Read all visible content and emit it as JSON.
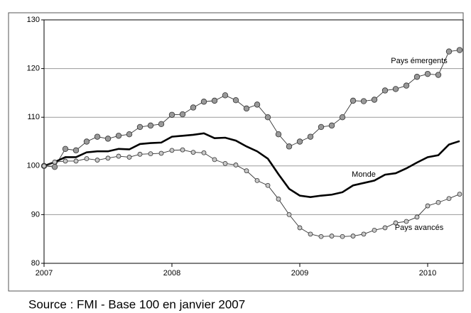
{
  "chart_data": {
    "type": "line",
    "categories": [
      "2007",
      null,
      null,
      null,
      null,
      null,
      null,
      null,
      null,
      null,
      null,
      null,
      "2008",
      null,
      null,
      null,
      null,
      null,
      null,
      null,
      null,
      null,
      null,
      null,
      "2009",
      null,
      null,
      null,
      null,
      null,
      null,
      null,
      null,
      null,
      null,
      null,
      "2010",
      null,
      null,
      null
    ],
    "series": [
      {
        "name": "Pays émergents",
        "color": "#999999",
        "marker": "large",
        "values": [
          100,
          99.8,
          103.5,
          103.2,
          105,
          106,
          105.6,
          106.2,
          106.5,
          108,
          108.3,
          108.6,
          110.5,
          110.6,
          112,
          113.2,
          113.4,
          114.5,
          113.5,
          111.8,
          112.6,
          110,
          106.5,
          104,
          105,
          106,
          108,
          108.3,
          110,
          113.4,
          113.3,
          113.6,
          115.5,
          115.8,
          116.5,
          118.3,
          118.9,
          118.7,
          123.5,
          123.8
        ]
      },
      {
        "name": "Monde",
        "color": "#000000",
        "marker": "none",
        "values": [
          100,
          100.8,
          101.8,
          101.8,
          102.8,
          103,
          103,
          103.5,
          103.4,
          104.5,
          104.7,
          104.8,
          106,
          106.2,
          106.4,
          106.7,
          105.7,
          105.8,
          105.2,
          104,
          103,
          101.5,
          98.3,
          95.3,
          93.9,
          93.6,
          93.9,
          94.1,
          94.6,
          96,
          96.5,
          97,
          98.2,
          98.5,
          99.5,
          100.7,
          101.8,
          102.2,
          104.4,
          105.1
        ]
      },
      {
        "name": "Pays avancés",
        "color": "#c8c8c8",
        "marker": "small",
        "values": [
          100,
          100.8,
          101,
          101,
          101.5,
          101.2,
          101.6,
          102,
          101.8,
          102.4,
          102.5,
          102.6,
          103.2,
          103.3,
          102.8,
          102.7,
          101.3,
          100.5,
          100.2,
          99,
          97,
          96,
          93.2,
          90,
          87.3,
          86,
          85.5,
          85.6,
          85.5,
          85.6,
          86,
          86.8,
          87.3,
          88.3,
          88.6,
          89.5,
          91.8,
          92.5,
          93.3,
          94.2
        ]
      }
    ],
    "ylim": [
      80,
      130
    ],
    "yticks": [
      80,
      90,
      100,
      110,
      120,
      130
    ],
    "grid": true,
    "source": "Source : FMI - Base 100 en janvier 2007"
  }
}
